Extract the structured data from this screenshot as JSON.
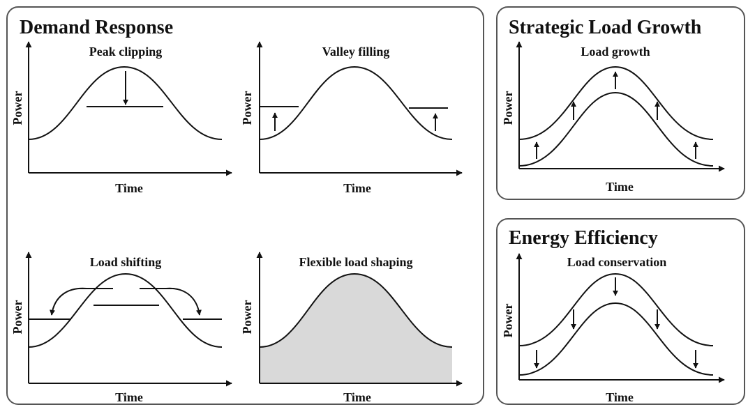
{
  "panels": {
    "demand_response": {
      "title": "Demand Response",
      "charts": {
        "peak_clipping": {
          "title": "Peak clipping",
          "xlabel": "Time",
          "ylabel": "Power"
        },
        "valley_filling": {
          "title": "Valley filling",
          "xlabel": "Time",
          "ylabel": "Power"
        },
        "load_shifting": {
          "title": "Load shifting",
          "xlabel": "Time",
          "ylabel": "Power"
        },
        "flexible_load_shaping": {
          "title": "Flexible load shaping",
          "xlabel": "Time",
          "ylabel": "Power"
        }
      }
    },
    "strategic_load_growth": {
      "title": "Strategic Load Growth",
      "chart": {
        "title": "Load growth",
        "xlabel": "Time",
        "ylabel": "Power"
      }
    },
    "energy_efficiency": {
      "title": "Energy Efficiency",
      "chart": {
        "title": "Load conservation",
        "xlabel": "Time",
        "ylabel": "Power"
      }
    }
  },
  "colors": {
    "ink": "#111111",
    "panel_border": "#555555",
    "fill": "#d9d9d9"
  }
}
